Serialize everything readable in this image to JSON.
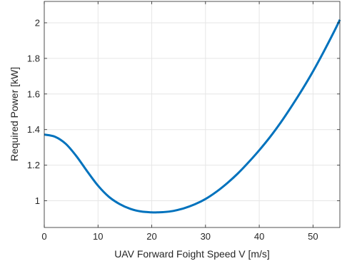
{
  "chart_data": {
    "type": "line",
    "title": "",
    "xlabel": "UAV Forward Foight Speed V [m/s]",
    "ylabel": "Required Power [kW]",
    "xlim": [
      0,
      55
    ],
    "ylim": [
      0.85,
      2.12
    ],
    "grid": true,
    "legend": "none",
    "x_ticks": [
      0,
      10,
      20,
      30,
      40,
      50
    ],
    "x_tick_labels": [
      "0",
      "10",
      "20",
      "30",
      "40",
      "50"
    ],
    "y_ticks": [
      1,
      1.2,
      1.4,
      1.6,
      1.8,
      2
    ],
    "y_tick_labels": [
      "1",
      "1.2",
      "1.4",
      "1.6",
      "1.8",
      "2"
    ],
    "series": [
      {
        "color": "#0072BD",
        "x": [
          0,
          2,
          4,
          6,
          8,
          10,
          12,
          14,
          16,
          18,
          20,
          21,
          22,
          24,
          26,
          28,
          30,
          32,
          34,
          36,
          38,
          40,
          42,
          44,
          46,
          48,
          50,
          52,
          54,
          55
        ],
        "y": [
          1.372,
          1.36,
          1.32,
          1.25,
          1.165,
          1.085,
          1.023,
          0.982,
          0.955,
          0.94,
          0.935,
          0.935,
          0.936,
          0.943,
          0.958,
          0.98,
          1.01,
          1.05,
          1.098,
          1.153,
          1.216,
          1.284,
          1.358,
          1.44,
          1.53,
          1.625,
          1.727,
          1.838,
          1.955,
          2.017
        ]
      }
    ]
  }
}
